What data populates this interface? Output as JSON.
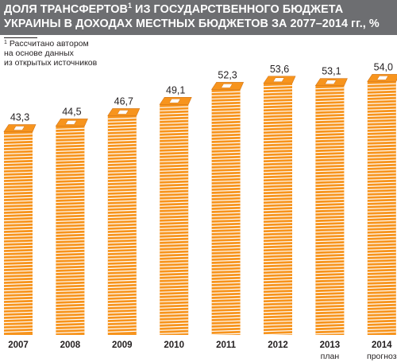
{
  "header": {
    "line1": "ДОЛЯ ТРАНСФЕРТОВ",
    "line1_sup": "1",
    "line1_rest": " ИЗ ГОСУДАРСТВЕННОГО БЮДЖЕТА",
    "line2": "УКРАИНЫ В ДОХОДАХ МЕСТНЫХ БЮДЖЕТОВ ЗА 2077–2014 гг., %"
  },
  "footnote": {
    "marker": "1",
    "line1": " Рассчитано автором",
    "line2": "на основе данных",
    "line3": "из открытых источников"
  },
  "colors": {
    "header_bg": "#6d6e71",
    "stack_orange": "#f7941d",
    "stack_light": "#fde3c2",
    "stack_dark": "#d2761a"
  },
  "chart_data": {
    "type": "bar",
    "title": "ДОЛЯ ТРАНСФЕРТОВ ИЗ ГОСУДАРСТВЕННОГО БЮДЖЕТА УКРАИНЫ В ДОХОДАХ МЕСТНЫХ БЮДЖЕТОВ ЗА 2077–2014 гг., %",
    "categories": [
      "2007",
      "2008",
      "2009",
      "2010",
      "2011",
      "2012",
      "2013",
      "2014"
    ],
    "values": [
      43.3,
      44.5,
      46.7,
      49.1,
      52.3,
      53.6,
      53.1,
      54.0
    ],
    "value_labels": [
      "43,3",
      "44,5",
      "46,7",
      "49,1",
      "52,3",
      "53,6",
      "53,1",
      "54,0"
    ],
    "category_notes": [
      "",
      "",
      "",
      "",
      "",
      "",
      "план",
      "прогноз"
    ],
    "xlabel": "",
    "ylabel": "",
    "grid": false,
    "legend": "none"
  }
}
